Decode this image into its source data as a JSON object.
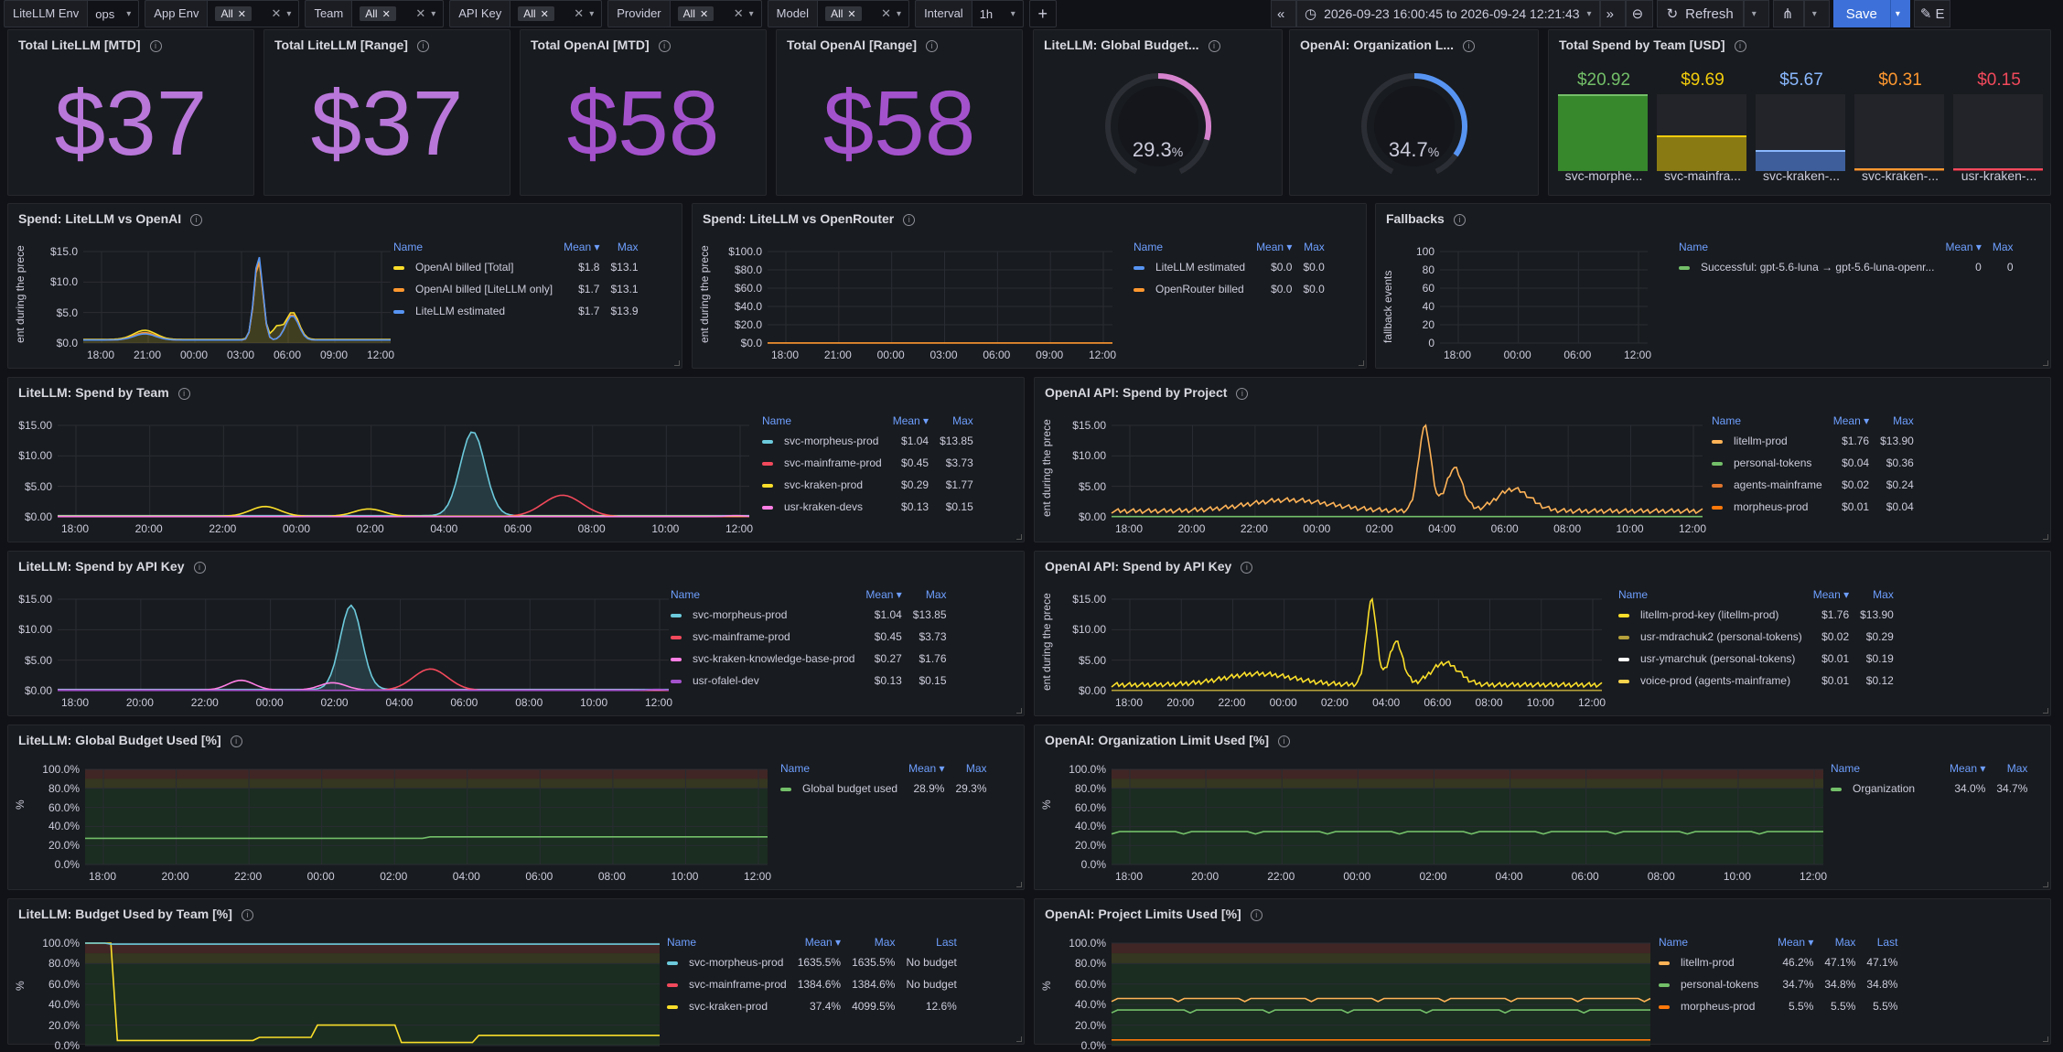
{
  "toolbar": {
    "vars": [
      {
        "label": "LiteLLM Env",
        "value": "ops",
        "chip": false,
        "clear": false
      },
      {
        "label": "App Env",
        "value": "All",
        "chip": true,
        "clear": true
      },
      {
        "label": "Team",
        "value": "All",
        "chip": true,
        "clear": true
      },
      {
        "label": "API Key",
        "value": "All",
        "chip": true,
        "clear": true
      },
      {
        "label": "Provider",
        "value": "All",
        "chip": true,
        "clear": true
      },
      {
        "label": "Model",
        "value": "All",
        "chip": true,
        "clear": true
      },
      {
        "label": "Interval",
        "value": "1h",
        "chip": false,
        "clear": false
      }
    ],
    "time_range": "2026-09-23 16:00:45 to 2026-09-24 12:21:43",
    "refresh_label": "Refresh",
    "save_label": "Save",
    "edit_label": "E"
  },
  "stats": [
    {
      "title": "Total LiteLLM [MTD]",
      "value": "$37"
    },
    {
      "title": "Total LiteLLM [Range]",
      "value": "$37"
    },
    {
      "title": "Total OpenAI [MTD]",
      "value": "$58"
    },
    {
      "title": "Total OpenAI [Range]",
      "value": "$58"
    }
  ],
  "gauges": [
    {
      "title": "LiteLLM: Global Budget...",
      "value": "29.3",
      "unit": "%",
      "fraction": 0.293,
      "color": "#d683ce"
    },
    {
      "title": "OpenAI: Organization L...",
      "value": "34.7",
      "unit": "%",
      "fraction": 0.347,
      "color": "#5794f2"
    }
  ],
  "team_spend": {
    "title": "Total Spend by Team [USD]",
    "bars": [
      {
        "name": "svc-morphe...",
        "value": "$20.92",
        "amount": 20.92,
        "color": "#73bf69",
        "fill": "#37872d"
      },
      {
        "name": "svc-mainfra...",
        "value": "$9.69",
        "amount": 9.69,
        "color": "#f2cc0c",
        "fill": "#8a7a14"
      },
      {
        "name": "svc-kraken-...",
        "value": "$5.67",
        "amount": 5.67,
        "color": "#8ab8ff",
        "fill": "#3d5e9a"
      },
      {
        "name": "svc-kraken-...",
        "value": "$0.31",
        "amount": 0.31,
        "color": "#ff9830",
        "fill": "#8a5020"
      },
      {
        "name": "usr-kraken-...",
        "value": "$0.15",
        "amount": 0.15,
        "color": "#f2495c",
        "fill": "#8a2530"
      }
    ]
  },
  "panels": {
    "litellm_vs_openai": {
      "title": "Spend: LiteLLM vs OpenAI",
      "yaxis": "ent during the prece",
      "yticks": [
        "$15.0",
        "$10.0",
        "$5.0",
        "$0.0"
      ],
      "xticks": [
        "18:00",
        "21:00",
        "00:00",
        "03:00",
        "06:00",
        "09:00",
        "12:00"
      ],
      "cols": [
        "Name",
        "Mean",
        "Max"
      ],
      "rows": [
        [
          "OpenAI billed [Total]",
          "$1.8",
          "$13.1",
          "#fade2a"
        ],
        [
          "OpenAI billed [LiteLLM only]",
          "$1.7",
          "$13.1",
          "#ff9830"
        ],
        [
          "LiteLLM estimated",
          "$1.7",
          "$13.9",
          "#5794f2"
        ]
      ]
    },
    "litellm_vs_openrouter": {
      "title": "Spend: LiteLLM vs OpenRouter",
      "yaxis": "ent during the prece",
      "yticks": [
        "$100.0",
        "$80.0",
        "$60.0",
        "$40.0",
        "$20.0",
        "$0.0"
      ],
      "xticks": [
        "18:00",
        "21:00",
        "00:00",
        "03:00",
        "06:00",
        "09:00",
        "12:00"
      ],
      "cols": [
        "Name",
        "Mean",
        "Max"
      ],
      "rows": [
        [
          "LiteLLM estimated",
          "$0.0",
          "$0.0",
          "#5794f2"
        ],
        [
          "OpenRouter billed",
          "$0.0",
          "$0.0",
          "#ff9830"
        ]
      ]
    },
    "fallbacks": {
      "title": "Fallbacks",
      "yaxis": "fallback events",
      "yticks": [
        "100",
        "80",
        "60",
        "40",
        "20",
        "0"
      ],
      "xticks": [
        "18:00",
        "00:00",
        "06:00",
        "12:00"
      ],
      "cols": [
        "Name",
        "Mean",
        "Max"
      ],
      "rows": [
        [
          "Successful: gpt-5.6-luna → gpt-5.6-luna-openr...",
          "0",
          "0",
          "#73bf69"
        ]
      ]
    },
    "spend_by_team": {
      "title": "LiteLLM: Spend by Team",
      "yticks": [
        "$15.00",
        "$10.00",
        "$5.00",
        "$0.00"
      ],
      "xticks": [
        "18:00",
        "20:00",
        "22:00",
        "00:00",
        "02:00",
        "04:00",
        "06:00",
        "08:00",
        "10:00",
        "12:00"
      ],
      "cols": [
        "Name",
        "Mean",
        "Max"
      ],
      "rows": [
        [
          "svc-morpheus-prod",
          "$1.04",
          "$13.85",
          "#6ccadc"
        ],
        [
          "svc-mainframe-prod",
          "$0.45",
          "$3.73",
          "#f2495c"
        ],
        [
          "svc-kraken-prod",
          "$0.29",
          "$1.77",
          "#fade2a"
        ],
        [
          "usr-kraken-devs",
          "$0.13",
          "$0.15",
          "#ff7fe5"
        ]
      ]
    },
    "spend_by_project": {
      "title": "OpenAI API: Spend by Project",
      "yaxis": "ent during the prece",
      "yticks": [
        "$15.00",
        "$10.00",
        "$5.00",
        "$0.00"
      ],
      "xticks": [
        "18:00",
        "20:00",
        "22:00",
        "00:00",
        "02:00",
        "04:00",
        "06:00",
        "08:00",
        "10:00",
        "12:00"
      ],
      "cols": [
        "Name",
        "Mean",
        "Max"
      ],
      "rows": [
        [
          "litellm-prod",
          "$1.76",
          "$13.90",
          "#ffb357"
        ],
        [
          "personal-tokens",
          "$0.04",
          "$0.36",
          "#73bf69"
        ],
        [
          "agents-mainframe",
          "$0.02",
          "$0.24",
          "#e0752d"
        ],
        [
          "morpheus-prod",
          "$0.01",
          "$0.04",
          "#ff780a"
        ]
      ]
    },
    "spend_by_apikey": {
      "title": "LiteLLM: Spend by API Key",
      "yticks": [
        "$15.00",
        "$10.00",
        "$5.00",
        "$0.00"
      ],
      "xticks": [
        "18:00",
        "20:00",
        "22:00",
        "00:00",
        "02:00",
        "04:00",
        "06:00",
        "08:00",
        "10:00",
        "12:00"
      ],
      "cols": [
        "Name",
        "Mean",
        "Max"
      ],
      "rows": [
        [
          "svc-morpheus-prod",
          "$1.04",
          "$13.85",
          "#6ccadc"
        ],
        [
          "svc-mainframe-prod",
          "$0.45",
          "$3.73",
          "#f2495c"
        ],
        [
          "svc-kraken-knowledge-base-prod",
          "$0.27",
          "$1.76",
          "#ff7fe5"
        ],
        [
          "usr-ofalel-dev",
          "$0.13",
          "$0.15",
          "#a352cc"
        ]
      ]
    },
    "openai_by_apikey": {
      "title": "OpenAI API: Spend by API Key",
      "yaxis": "ent during the prece",
      "yticks": [
        "$15.00",
        "$10.00",
        "$5.00",
        "$0.00"
      ],
      "xticks": [
        "18:00",
        "20:00",
        "22:00",
        "00:00",
        "02:00",
        "04:00",
        "06:00",
        "08:00",
        "10:00",
        "12:00"
      ],
      "cols": [
        "Name",
        "Mean",
        "Max"
      ],
      "rows": [
        [
          "litellm-prod-key (litellm-prod)",
          "$1.76",
          "$13.90",
          "#fade2a"
        ],
        [
          "usr-mdrachuk2 (personal-tokens)",
          "$0.02",
          "$0.29",
          "#b5a03a"
        ],
        [
          "usr-ymarchuk (personal-tokens)",
          "$0.01",
          "$0.19",
          "#ffffff"
        ],
        [
          "voice-prod (agents-mainframe)",
          "$0.01",
          "$0.12",
          "#fbd44e"
        ]
      ]
    },
    "global_budget": {
      "title": "LiteLLM: Global Budget Used [%]",
      "yaxis": "%",
      "yticks": [
        "100.0%",
        "80.0%",
        "60.0%",
        "40.0%",
        "20.0%",
        "0.0%"
      ],
      "xticks": [
        "18:00",
        "20:00",
        "22:00",
        "00:00",
        "02:00",
        "04:00",
        "06:00",
        "08:00",
        "10:00",
        "12:00"
      ],
      "cols": [
        "Name",
        "Mean",
        "Max"
      ],
      "rows": [
        [
          "Global budget used",
          "28.9%",
          "29.3%",
          "#73bf69"
        ]
      ]
    },
    "org_limit": {
      "title": "OpenAI: Organization Limit Used [%]",
      "yaxis": "%",
      "yticks": [
        "100.0%",
        "80.0%",
        "60.0%",
        "40.0%",
        "20.0%",
        "0.0%"
      ],
      "xticks": [
        "18:00",
        "20:00",
        "22:00",
        "00:00",
        "02:00",
        "04:00",
        "06:00",
        "08:00",
        "10:00",
        "12:00"
      ],
      "cols": [
        "Name",
        "Mean",
        "Max"
      ],
      "rows": [
        [
          "Organization",
          "34.0%",
          "34.7%",
          "#73bf69"
        ]
      ]
    },
    "budget_by_team": {
      "title": "LiteLLM: Budget Used by Team [%]",
      "yaxis": "%",
      "yticks": [
        "100.0%",
        "80.0%",
        "60.0%",
        "40.0%",
        "20.0%",
        "0.0%"
      ],
      "cols": [
        "Name",
        "Mean",
        "Max",
        "Last"
      ],
      "rows": [
        [
          "svc-morpheus-prod",
          "1635.5%",
          "1635.5%",
          "No budget",
          "#6ccadc"
        ],
        [
          "svc-mainframe-prod",
          "1384.6%",
          "1384.6%",
          "No budget",
          "#f2495c"
        ],
        [
          "svc-kraken-prod",
          "37.4%",
          "4099.5%",
          "12.6%",
          "#fade2a"
        ]
      ]
    },
    "project_limits": {
      "title": "OpenAI: Project Limits Used [%]",
      "yaxis": "%",
      "yticks": [
        "100.0%",
        "80.0%",
        "60.0%",
        "40.0%",
        "20.0%",
        "0.0%"
      ],
      "cols": [
        "Name",
        "Mean",
        "Max",
        "Last"
      ],
      "rows": [
        [
          "litellm-prod",
          "46.2%",
          "47.1%",
          "47.1%",
          "#ffb357"
        ],
        [
          "personal-tokens",
          "34.7%",
          "34.8%",
          "34.8%",
          "#73bf69"
        ],
        [
          "morpheus-prod",
          "5.5%",
          "5.5%",
          "5.5%",
          "#ff780a"
        ]
      ]
    }
  }
}
